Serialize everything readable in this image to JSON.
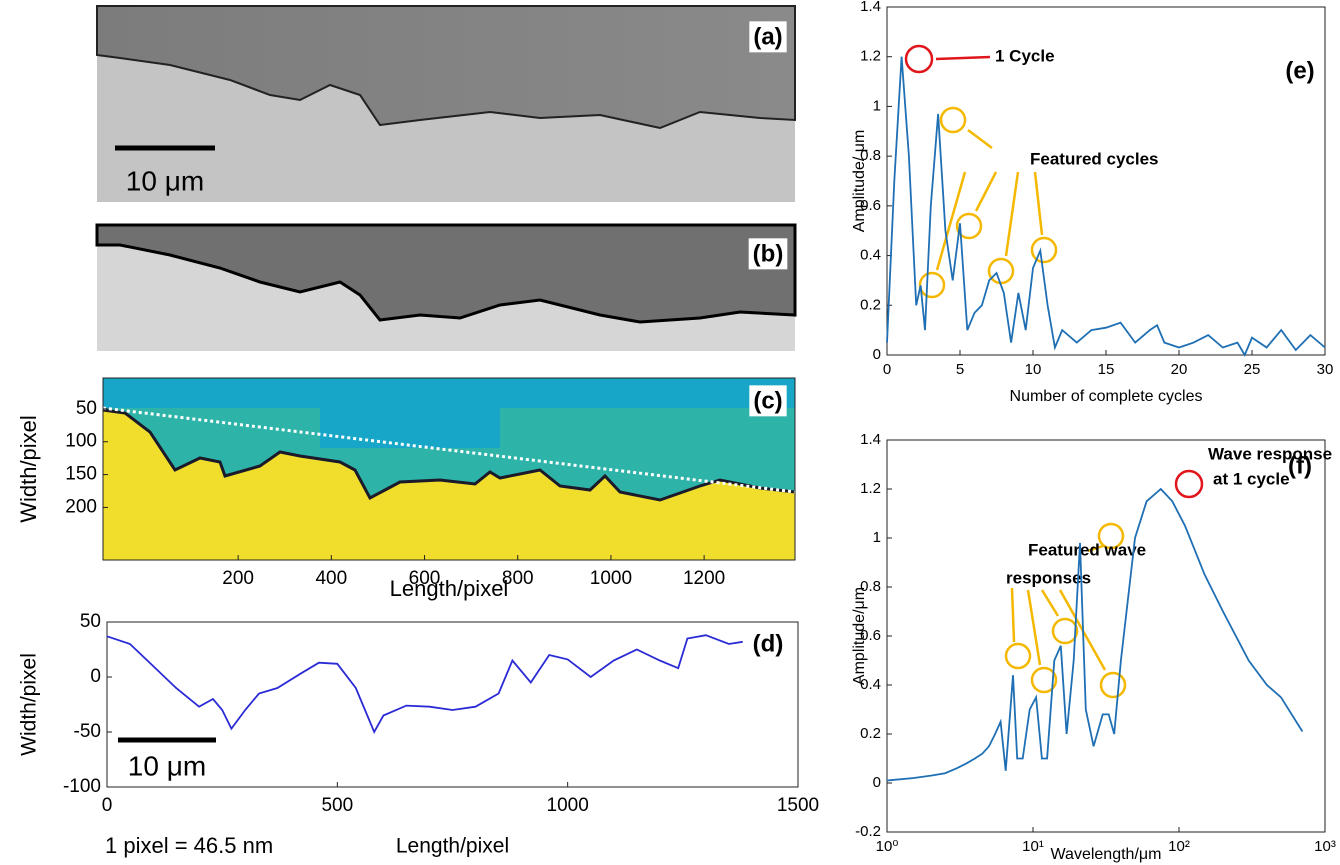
{
  "chart_data": [
    {
      "type": "image",
      "panel_label": "(a)",
      "scale_bar_label": "10 μm"
    },
    {
      "type": "image",
      "panel_label": "(b)"
    },
    {
      "type": "image",
      "panel_label": "(c)",
      "xlabel": "Length/pixel",
      "ylabel": "Width/pixel",
      "xlim": [
        -90,
        1395
      ],
      "ylim": [
        280,
        3
      ],
      "xticks": [
        200,
        400,
        600,
        800,
        1000,
        1200
      ],
      "yticks": [
        50,
        100,
        150,
        200
      ]
    },
    {
      "type": "line",
      "panel_label": "(d)",
      "xlabel": "Length/pixel",
      "ylabel": "Width/pixel",
      "scale_bar_label": "10 μm",
      "note": "1 pixel = 46.5 nm",
      "xlim": [
        0,
        1500
      ],
      "ylim": [
        -100,
        50
      ],
      "xticks": [
        0,
        500,
        1000,
        1500
      ],
      "yticks": [
        -100,
        -50,
        0,
        50
      ],
      "series": [
        {
          "color": "#2b2bd6",
          "x": [
            0,
            50,
            100,
            150,
            200,
            230,
            250,
            270,
            300,
            330,
            370,
            420,
            460,
            500,
            540,
            580,
            600,
            650,
            700,
            750,
            800,
            850,
            880,
            920,
            960,
            1000,
            1050,
            1100,
            1150,
            1200,
            1240,
            1260,
            1300,
            1350,
            1380
          ],
          "values": [
            37,
            30,
            10,
            -10,
            -27,
            -20,
            -30,
            -47,
            -30,
            -15,
            -10,
            3,
            13,
            12,
            -10,
            -50,
            -35,
            -26,
            -27,
            -30,
            -27,
            -15,
            15,
            -5,
            20,
            16,
            0,
            15,
            25,
            15,
            8,
            35,
            38,
            30,
            32
          ]
        }
      ]
    },
    {
      "type": "line",
      "panel_label": "(e)",
      "xlabel": "Number of complete cycles",
      "ylabel": "Amplitude/ μm",
      "xlim": [
        0,
        30
      ],
      "ylim": [
        0,
        1.4
      ],
      "xticks": [
        0,
        5,
        10,
        15,
        20,
        25,
        30
      ],
      "yticks": [
        0,
        0.2,
        0.4,
        0.6,
        0.8,
        1,
        1.2,
        1.4
      ],
      "annotations": [
        {
          "lines": [
            "1 Cycle"
          ]
        },
        {
          "lines": [
            "Featured cycles"
          ]
        }
      ],
      "series": [
        {
          "color": "#1f6fb4",
          "x": [
            0,
            0.5,
            1,
            1.5,
            2,
            2.3,
            2.6,
            3,
            3.5,
            4,
            4.5,
            5,
            5.5,
            6,
            6.5,
            7,
            7.5,
            8,
            8.5,
            9,
            9.5,
            10,
            10.5,
            11,
            11.5,
            12,
            13,
            14,
            15,
            16,
            17,
            18,
            18.5,
            19,
            20,
            21,
            22,
            23,
            24,
            24.5,
            25,
            26,
            27,
            28,
            29,
            30
          ],
          "values": [
            0.05,
            0.7,
            1.2,
            0.8,
            0.2,
            0.28,
            0.1,
            0.6,
            0.97,
            0.5,
            0.3,
            0.53,
            0.1,
            0.17,
            0.2,
            0.3,
            0.33,
            0.25,
            0.05,
            0.25,
            0.1,
            0.35,
            0.42,
            0.2,
            0.03,
            0.1,
            0.05,
            0.1,
            0.11,
            0.13,
            0.05,
            0.1,
            0.12,
            0.05,
            0.03,
            0.05,
            0.08,
            0.03,
            0.05,
            0,
            0.07,
            0.03,
            0.1,
            0.02,
            0.08,
            0.03
          ]
        }
      ]
    },
    {
      "type": "line",
      "panel_label": "(f)",
      "xlabel": "Wavelength/μm",
      "ylabel": "Amplitude/μm",
      "log_x": true,
      "xlim": [
        1,
        1000
      ],
      "ylim": [
        -0.2,
        1.4
      ],
      "xticks": [
        {
          "value": 1,
          "label": "10⁰"
        },
        {
          "value": 10,
          "label": "10¹"
        },
        {
          "value": 100,
          "label": "10²"
        },
        {
          "value": 1000,
          "label": "10³"
        }
      ],
      "yticks": [
        -0.2,
        0,
        0.2,
        0.4,
        0.6,
        0.8,
        1,
        1.2,
        1.4
      ],
      "annotations": [
        {
          "lines": [
            "Wave response",
            "at 1 cycle"
          ]
        },
        {
          "lines": [
            "Featured wave",
            "responses"
          ]
        }
      ],
      "series": [
        {
          "color": "#1f6fb4",
          "x": [
            1,
            1.5,
            2,
            2.5,
            3,
            3.5,
            4,
            4.5,
            5,
            5.5,
            6,
            6.5,
            7,
            7.3,
            7.8,
            8.5,
            9.5,
            10.5,
            11.5,
            12.5,
            14,
            15.5,
            17,
            19,
            21,
            23,
            26,
            30,
            33,
            36,
            40,
            50,
            60,
            75,
            90,
            110,
            150,
            200,
            300,
            400,
            500,
            700
          ],
          "values": [
            0.01,
            0.02,
            0.03,
            0.04,
            0.06,
            0.08,
            0.1,
            0.12,
            0.15,
            0.2,
            0.25,
            0.05,
            0.3,
            0.44,
            0.1,
            0.1,
            0.3,
            0.35,
            0.1,
            0.1,
            0.5,
            0.56,
            0.2,
            0.5,
            0.98,
            0.3,
            0.15,
            0.28,
            0.28,
            0.2,
            0.5,
            1.0,
            1.15,
            1.2,
            1.15,
            1.05,
            0.85,
            0.7,
            0.5,
            0.4,
            0.35,
            0.21
          ]
        }
      ]
    }
  ]
}
